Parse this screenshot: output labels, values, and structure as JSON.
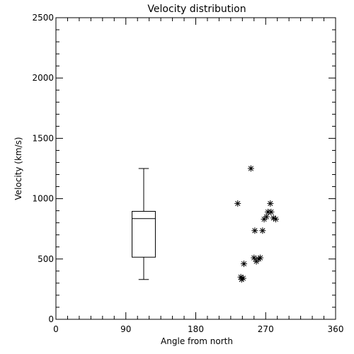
{
  "chart_data": {
    "type": "scatter",
    "title": "Velocity distribution",
    "xlabel": "Angle from north",
    "ylabel": "Velocity (km/s)",
    "xlim": [
      0,
      360
    ],
    "ylim": [
      0,
      2500
    ],
    "x_ticks": [
      "0",
      "90",
      "180",
      "270",
      "360"
    ],
    "y_ticks": [
      "0",
      "500",
      "1000",
      "1500",
      "2000",
      "2500"
    ],
    "grid": false,
    "marker": "asterisk",
    "points": [
      {
        "x": 234,
        "y": 960
      },
      {
        "x": 251,
        "y": 1250
      },
      {
        "x": 238,
        "y": 350
      },
      {
        "x": 239,
        "y": 330
      },
      {
        "x": 241,
        "y": 340
      },
      {
        "x": 242,
        "y": 460
      },
      {
        "x": 255,
        "y": 510
      },
      {
        "x": 256,
        "y": 735
      },
      {
        "x": 258,
        "y": 480
      },
      {
        "x": 261,
        "y": 500
      },
      {
        "x": 263,
        "y": 510
      },
      {
        "x": 266,
        "y": 735
      },
      {
        "x": 268,
        "y": 830
      },
      {
        "x": 271,
        "y": 850
      },
      {
        "x": 273,
        "y": 890
      },
      {
        "x": 276,
        "y": 960
      },
      {
        "x": 277,
        "y": 890
      },
      {
        "x": 280,
        "y": 840
      },
      {
        "x": 283,
        "y": 830
      }
    ],
    "boxplot": {
      "x_center": 113,
      "x_halfwidth": 15,
      "whisker_low": 330,
      "q1": 515,
      "median": 835,
      "q3": 895,
      "whisker_high": 1250
    }
  }
}
